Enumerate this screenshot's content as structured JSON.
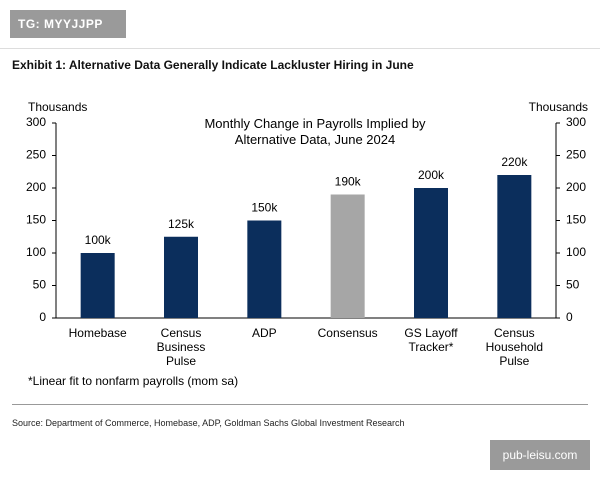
{
  "watermark_top": "TG: MYYJJPP",
  "exhibit_title": "Exhibit 1: Alternative Data Generally Indicate Lackluster Hiring in June",
  "footnote": "*Linear fit to nonfarm payrolls (mom sa)",
  "source": "Source: Department of Commerce, Homebase, ADP, Goldman Sachs Global Investment Research",
  "watermark_bottom": "pub-leisu.com",
  "chart_data": {
    "type": "bar",
    "title": "Monthly Change in Payrolls Implied by Alternative Data, June 2024",
    "ylabel": "Thousands",
    "y2label": "Thousands",
    "categories": [
      "Homebase",
      "Census Business Pulse",
      "ADP",
      "Consensus",
      "GS Layoff Tracker*",
      "Census Household Pulse"
    ],
    "values": [
      100,
      125,
      150,
      190,
      200,
      220
    ],
    "value_labels": [
      "100k",
      "125k",
      "150k",
      "190k",
      "200k",
      "220k"
    ],
    "colors": [
      "#0b2e5c",
      "#0b2e5c",
      "#0b2e5c",
      "#a6a6a6",
      "#0b2e5c",
      "#0b2e5c"
    ],
    "ylim": [
      0,
      300
    ],
    "yticks": [
      0,
      50,
      100,
      150,
      200,
      250,
      300
    ],
    "y2lim": [
      0,
      300
    ],
    "y2ticks": [
      0,
      50,
      100,
      150,
      200,
      250,
      300
    ],
    "grid": false
  }
}
